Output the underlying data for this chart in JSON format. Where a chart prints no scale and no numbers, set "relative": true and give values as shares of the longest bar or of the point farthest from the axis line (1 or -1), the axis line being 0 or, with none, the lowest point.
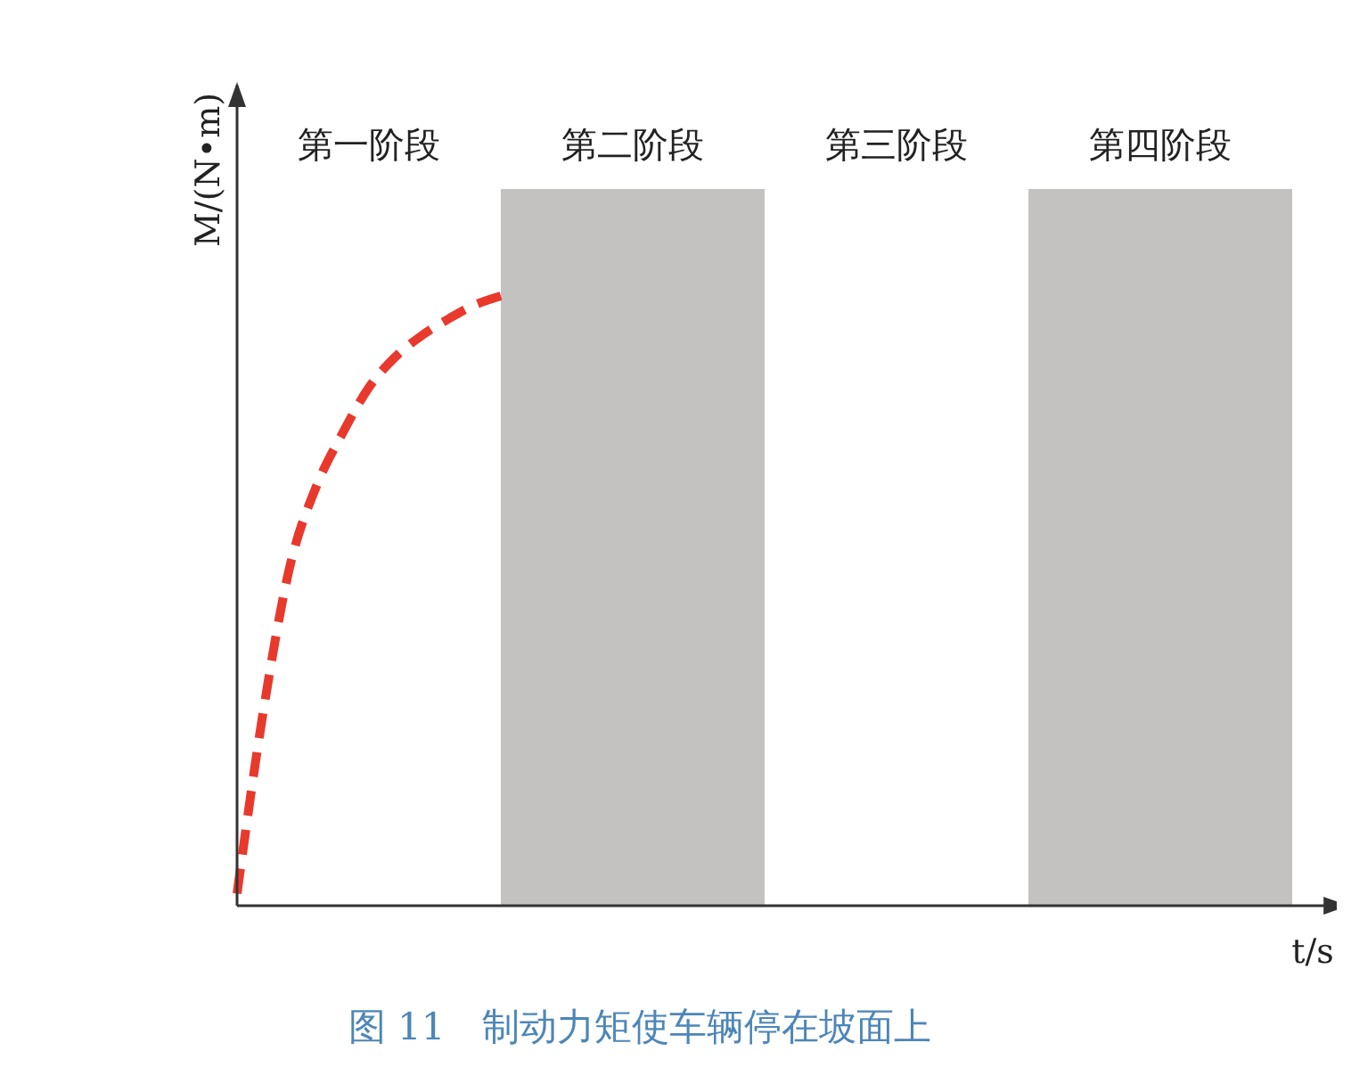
{
  "chart_data": {
    "type": "line",
    "title": "图 11　制动力矩使车辆停在坡面上",
    "xlabel": "t/s",
    "ylabel": "M/(N•m)",
    "relative": true,
    "categories": [
      null,
      null,
      null,
      null,
      null,
      null,
      null,
      null,
      null,
      null,
      null,
      null,
      null,
      null,
      null,
      null,
      null,
      null,
      null,
      null,
      null,
      null,
      null,
      null,
      null,
      null,
      null,
      null,
      null,
      null,
      null,
      null,
      null,
      null,
      null,
      null,
      null,
      null,
      null,
      null,
      null,
      null,
      null
    ],
    "series": [
      {
        "color": "#e8392c",
        "line_style": "dashed",
        "values": [
          0.02,
          0.32,
          0.556,
          0.687,
          0.775,
          0.85,
          0.9,
          0.935,
          0.962,
          0.985,
          1,
          null,
          null,
          null,
          null,
          null,
          null,
          null,
          null,
          null,
          null,
          null,
          null,
          null,
          null,
          null,
          null,
          null,
          null,
          null,
          null,
          null,
          null,
          null,
          null,
          null,
          null,
          null,
          null,
          null,
          null,
          null,
          null
        ]
      }
    ],
    "annotations": [
      "第一阶段",
      "第二阶段",
      "第三阶段",
      "第四阶段"
    ]
  }
}
